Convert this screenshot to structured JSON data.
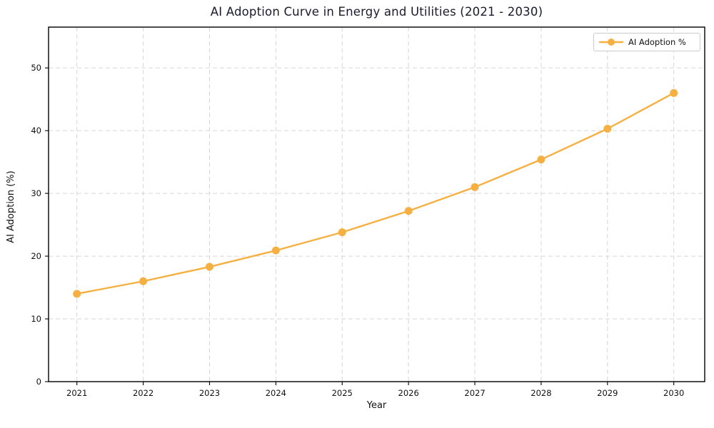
{
  "chart_data": {
    "type": "line",
    "title": "AI Adoption Curve in Energy and Utilities (2021 - 2030)",
    "xlabel": "Year",
    "ylabel": "AI Adoption (%)",
    "x": [
      2021,
      2022,
      2023,
      2024,
      2025,
      2026,
      2027,
      2028,
      2029,
      2030
    ],
    "series": [
      {
        "name": "AI Adoption %",
        "values": [
          14.0,
          16.0,
          18.3,
          20.9,
          23.8,
          27.2,
          31.0,
          35.4,
          40.3,
          46.0
        ]
      }
    ],
    "yticks": [
      0,
      10,
      20,
      30,
      40,
      50
    ],
    "ylim": [
      0,
      56.5
    ],
    "grid": true,
    "grid_style": "dashed",
    "legend_position": "upper right",
    "marker": "circle"
  },
  "colors": {
    "line": "#F5B041",
    "marker": "#F5B041",
    "grid": "#d6d6d6",
    "spine": "#000000",
    "title_text": "#1a1a2e",
    "tick_text": "#111111",
    "legend_border": "#cccccc",
    "background": "#ffffff"
  }
}
